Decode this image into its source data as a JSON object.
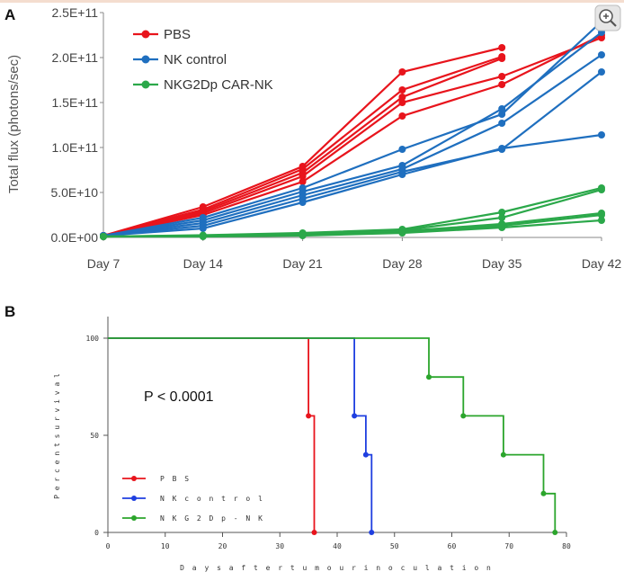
{
  "chart_data": [
    {
      "panel": "A",
      "type": "line",
      "x": [
        "Day 7",
        "Day 14",
        "Day 21",
        "Day 28",
        "Day 35",
        "Day 42"
      ],
      "ylabel": "Total flux (photons/sec)",
      "yticks": [
        "0.0E+00",
        "5.0E+10",
        "1.0E+11",
        "1.5E+11",
        "2.0E+11",
        "2.5E+11"
      ],
      "ylim": [
        0,
        250000000000
      ],
      "legend_position": "top-left",
      "series": [
        {
          "name": "PBS",
          "color": "#e8141c",
          "lines": [
            [
              2000000000,
              34000000000,
              79000000000,
              184000000000,
              211000000000,
              null
            ],
            [
              2000000000,
              31000000000,
              76000000000,
              164000000000,
              201000000000,
              null
            ],
            [
              2000000000,
              29000000000,
              72000000000,
              156000000000,
              199000000000,
              null
            ],
            [
              2000000000,
              27000000000,
              68000000000,
              150000000000,
              179000000000,
              222000000000
            ],
            [
              2000000000,
              25000000000,
              62000000000,
              135000000000,
              170000000000,
              225000000000
            ]
          ]
        },
        {
          "name": "NK control",
          "color": "#1f6fbf",
          "lines": [
            [
              2000000000,
              22000000000,
              55000000000,
              98000000000,
              137000000000,
              240000000000
            ],
            [
              2000000000,
              19000000000,
              51000000000,
              80000000000,
              143000000000,
              228000000000
            ],
            [
              2000000000,
              16000000000,
              47000000000,
              76000000000,
              127000000000,
              203000000000
            ],
            [
              2000000000,
              13000000000,
              43000000000,
              73000000000,
              98000000000,
              184000000000
            ],
            [
              2000000000,
              10000000000,
              39000000000,
              70000000000,
              99000000000,
              114000000000
            ]
          ]
        },
        {
          "name": "NKG2Dp CAR-NK",
          "color": "#2ba84a",
          "lines": [
            [
              1000000000,
              2500000000,
              5000000000,
              9000000000,
              28000000000,
              55000000000
            ],
            [
              1000000000,
              2000000000,
              4000000000,
              8000000000,
              22000000000,
              53000000000
            ],
            [
              1000000000,
              1500000000,
              3000000000,
              7000000000,
              15000000000,
              27000000000
            ],
            [
              1000000000,
              1500000000,
              2500000000,
              6000000000,
              13000000000,
              25000000000
            ],
            [
              1000000000,
              1000000000,
              2000000000,
              5000000000,
              11000000000,
              19000000000
            ]
          ]
        }
      ]
    },
    {
      "panel": "B",
      "type": "line",
      "subtype": "survival-step",
      "xlabel": "D a y s   a f t e r   t u m o u r   i n o c u l a t i o n",
      "ylabel": "P e r c e n t   s u r v i v a l",
      "xticks": [
        "0",
        "10",
        "20",
        "30",
        "40",
        "50",
        "60",
        "70",
        "80"
      ],
      "yticks": [
        "0",
        "50",
        "100"
      ],
      "xlim": [
        0,
        80
      ],
      "ylim": [
        0,
        100
      ],
      "annotation": "P < 0.0001",
      "legend_position": "bottom-left",
      "series": [
        {
          "name": "P B S",
          "color": "#e8141c",
          "points": [
            [
              0,
              100
            ],
            [
              35,
              100
            ],
            [
              35,
              60
            ],
            [
              36,
              60
            ],
            [
              36,
              0
            ]
          ]
        },
        {
          "name": "N K   c o n t r o l",
          "color": "#1f3fe0",
          "points": [
            [
              0,
              100
            ],
            [
              43,
              100
            ],
            [
              43,
              60
            ],
            [
              45,
              60
            ],
            [
              45,
              40
            ],
            [
              46,
              40
            ],
            [
              46,
              0
            ]
          ]
        },
        {
          "name": "N K G 2 D p - N K",
          "color": "#2ba52c",
          "points": [
            [
              0,
              100
            ],
            [
              56,
              100
            ],
            [
              56,
              80
            ],
            [
              62,
              80
            ],
            [
              62,
              60
            ],
            [
              69,
              60
            ],
            [
              69,
              40
            ],
            [
              76,
              40
            ],
            [
              76,
              20
            ],
            [
              78,
              20
            ],
            [
              78,
              0
            ]
          ]
        }
      ]
    }
  ],
  "panel_labels": {
    "a": "A",
    "b": "B"
  },
  "legend_a": [
    "PBS",
    "NK control",
    "NKG2Dp CAR-NK"
  ],
  "legend_b": [
    "P B S",
    "N K   c o n t r o l",
    "N K G 2 D p - N K"
  ],
  "zoom_icon": "zoom-in-icon"
}
